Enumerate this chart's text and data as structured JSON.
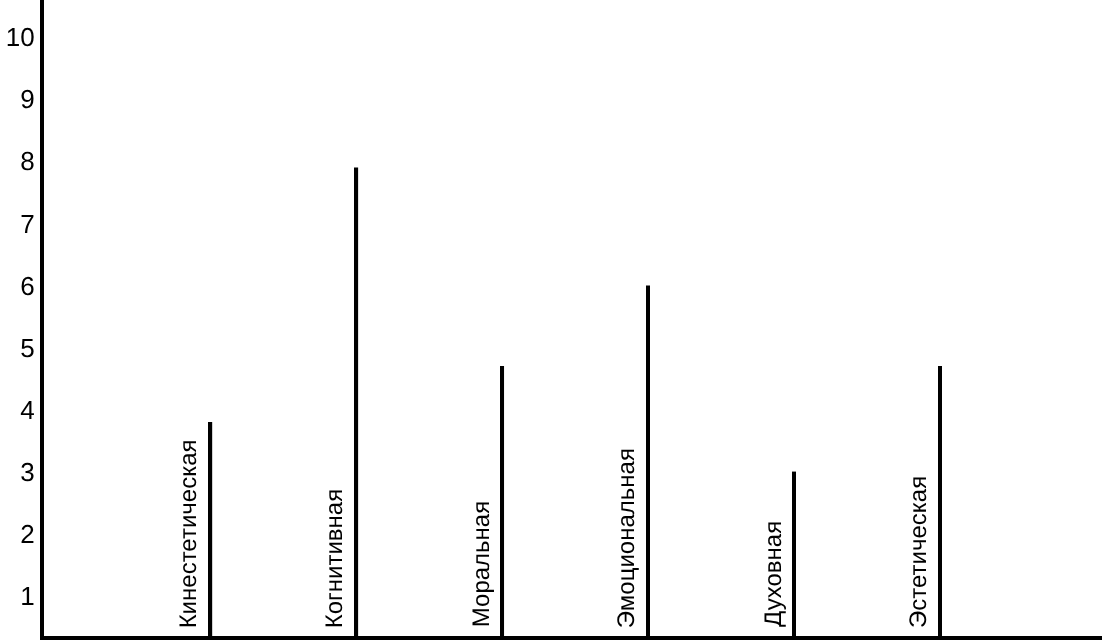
{
  "chart_data": {
    "type": "bar",
    "categories": [
      "Кинестетическая",
      "Когнитивная",
      "Моральная",
      "Эмоциональная",
      "Духовная",
      "Эстетическая"
    ],
    "values": [
      3.8,
      7.9,
      4.7,
      6.0,
      3.0,
      4.7
    ],
    "color": "#000000",
    "ylim": [
      0.35,
      10.6
    ],
    "yticks": [
      1,
      2,
      3,
      4,
      5,
      6,
      7,
      8,
      9,
      10
    ],
    "legend": false,
    "tick_labels": "y"
  }
}
